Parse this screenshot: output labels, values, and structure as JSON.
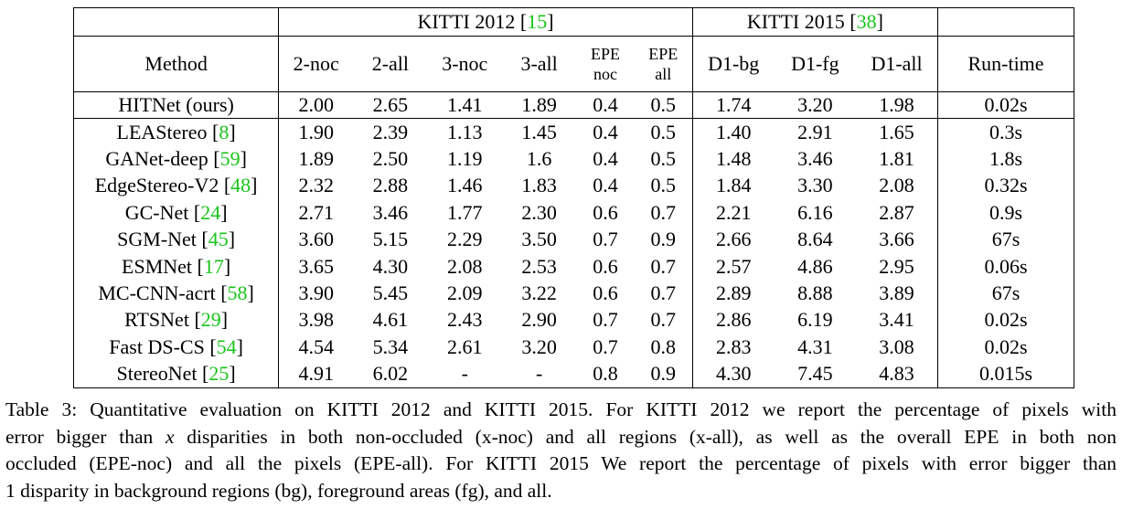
{
  "table": {
    "group_headers": {
      "kitti2012": "KITTI 2012",
      "kitti2012_ref": "15",
      "kitti2015": "KITTI 2015",
      "kitti2015_ref": "38"
    },
    "columns": {
      "method": "Method",
      "noc2": "2-noc",
      "all2": "2-all",
      "noc3": "3-noc",
      "all3": "3-all",
      "epe_noc_top": "EPE",
      "epe_noc_bottom": "noc",
      "epe_all_top": "EPE",
      "epe_all_bottom": "all",
      "d1bg": "D1-bg",
      "d1fg": "D1-fg",
      "d1all": "D1-all",
      "runtime": "Run-time"
    },
    "rows": [
      {
        "method": "HITNet (ours)",
        "ref": "",
        "noc2": "2.00",
        "all2": "2.65",
        "noc3": "1.41",
        "all3": "1.89",
        "epe_noc": "0.4",
        "epe_all": "0.5",
        "d1bg": "1.74",
        "d1fg": "3.20",
        "d1all": "1.98",
        "runtime": "0.02s"
      },
      {
        "method": "LEAStereo",
        "ref": "8",
        "noc2": "1.90",
        "all2": "2.39",
        "noc3": "1.13",
        "all3": "1.45",
        "epe_noc": "0.4",
        "epe_all": "0.5",
        "d1bg": "1.40",
        "d1fg": "2.91",
        "d1all": "1.65",
        "runtime": "0.3s"
      },
      {
        "method": "GANet-deep",
        "ref": "59",
        "noc2": "1.89",
        "all2": "2.50",
        "noc3": "1.19",
        "all3": "1.6",
        "epe_noc": "0.4",
        "epe_all": "0.5",
        "d1bg": "1.48",
        "d1fg": "3.46",
        "d1all": "1.81",
        "runtime": "1.8s"
      },
      {
        "method": "EdgeStereo-V2",
        "ref": "48",
        "noc2": "2.32",
        "all2": "2.88",
        "noc3": "1.46",
        "all3": "1.83",
        "epe_noc": "0.4",
        "epe_all": "0.5",
        "d1bg": "1.84",
        "d1fg": "3.30",
        "d1all": "2.08",
        "runtime": "0.32s"
      },
      {
        "method": "GC-Net",
        "ref": "24",
        "noc2": "2.71",
        "all2": "3.46",
        "noc3": "1.77",
        "all3": "2.30",
        "epe_noc": "0.6",
        "epe_all": "0.7",
        "d1bg": "2.21",
        "d1fg": "6.16",
        "d1all": "2.87",
        "runtime": "0.9s"
      },
      {
        "method": "SGM-Net",
        "ref": "45",
        "noc2": "3.60",
        "all2": "5.15",
        "noc3": "2.29",
        "all3": "3.50",
        "epe_noc": "0.7",
        "epe_all": "0.9",
        "d1bg": "2.66",
        "d1fg": "8.64",
        "d1all": "3.66",
        "runtime": "67s"
      },
      {
        "method": "ESMNet",
        "ref": "17",
        "noc2": "3.65",
        "all2": "4.30",
        "noc3": "2.08",
        "all3": "2.53",
        "epe_noc": "0.6",
        "epe_all": "0.7",
        "d1bg": "2.57",
        "d1fg": "4.86",
        "d1all": "2.95",
        "runtime": "0.06s"
      },
      {
        "method": "MC-CNN-acrt",
        "ref": "58",
        "noc2": "3.90",
        "all2": "5.45",
        "noc3": "2.09",
        "all3": "3.22",
        "epe_noc": "0.6",
        "epe_all": "0.7",
        "d1bg": "2.89",
        "d1fg": "8.88",
        "d1all": "3.89",
        "runtime": "67s"
      },
      {
        "method": "RTSNet",
        "ref": "29",
        "noc2": "3.98",
        "all2": "4.61",
        "noc3": "2.43",
        "all3": "2.90",
        "epe_noc": "0.7",
        "epe_all": "0.7",
        "d1bg": "2.86",
        "d1fg": "6.19",
        "d1all": "3.41",
        "runtime": "0.02s"
      },
      {
        "method": "Fast DS-CS",
        "ref": "54",
        "noc2": "4.54",
        "all2": "5.34",
        "noc3": "2.61",
        "all3": "3.20",
        "epe_noc": "0.7",
        "epe_all": "0.8",
        "d1bg": "2.83",
        "d1fg": "4.31",
        "d1all": "3.08",
        "runtime": "0.02s"
      },
      {
        "method": "StereoNet",
        "ref": "25",
        "noc2": "4.91",
        "all2": "6.02",
        "noc3": "-",
        "all3": "-",
        "epe_noc": "0.8",
        "epe_all": "0.9",
        "d1bg": "4.30",
        "d1fg": "7.45",
        "d1all": "4.83",
        "runtime": "0.015s"
      }
    ]
  },
  "caption": {
    "line1": "Table 3: Quantitative evaluation on KITTI 2012 and KITTI 2015. For KITTI 2012 we report the percentage of pixels with",
    "line2_a": "error bigger than ",
    "line2_var": "x",
    "line2_b": " disparities in both non-occluded (x-noc) and all regions (x-all), as well as the overall EPE in both non",
    "line3": "occluded (EPE-noc) and all the pixels (EPE-all). For KITTI 2015 We report the percentage of pixels with error bigger than",
    "line4": "1 disparity in background regions (bg), foreground areas (fg), and all."
  }
}
